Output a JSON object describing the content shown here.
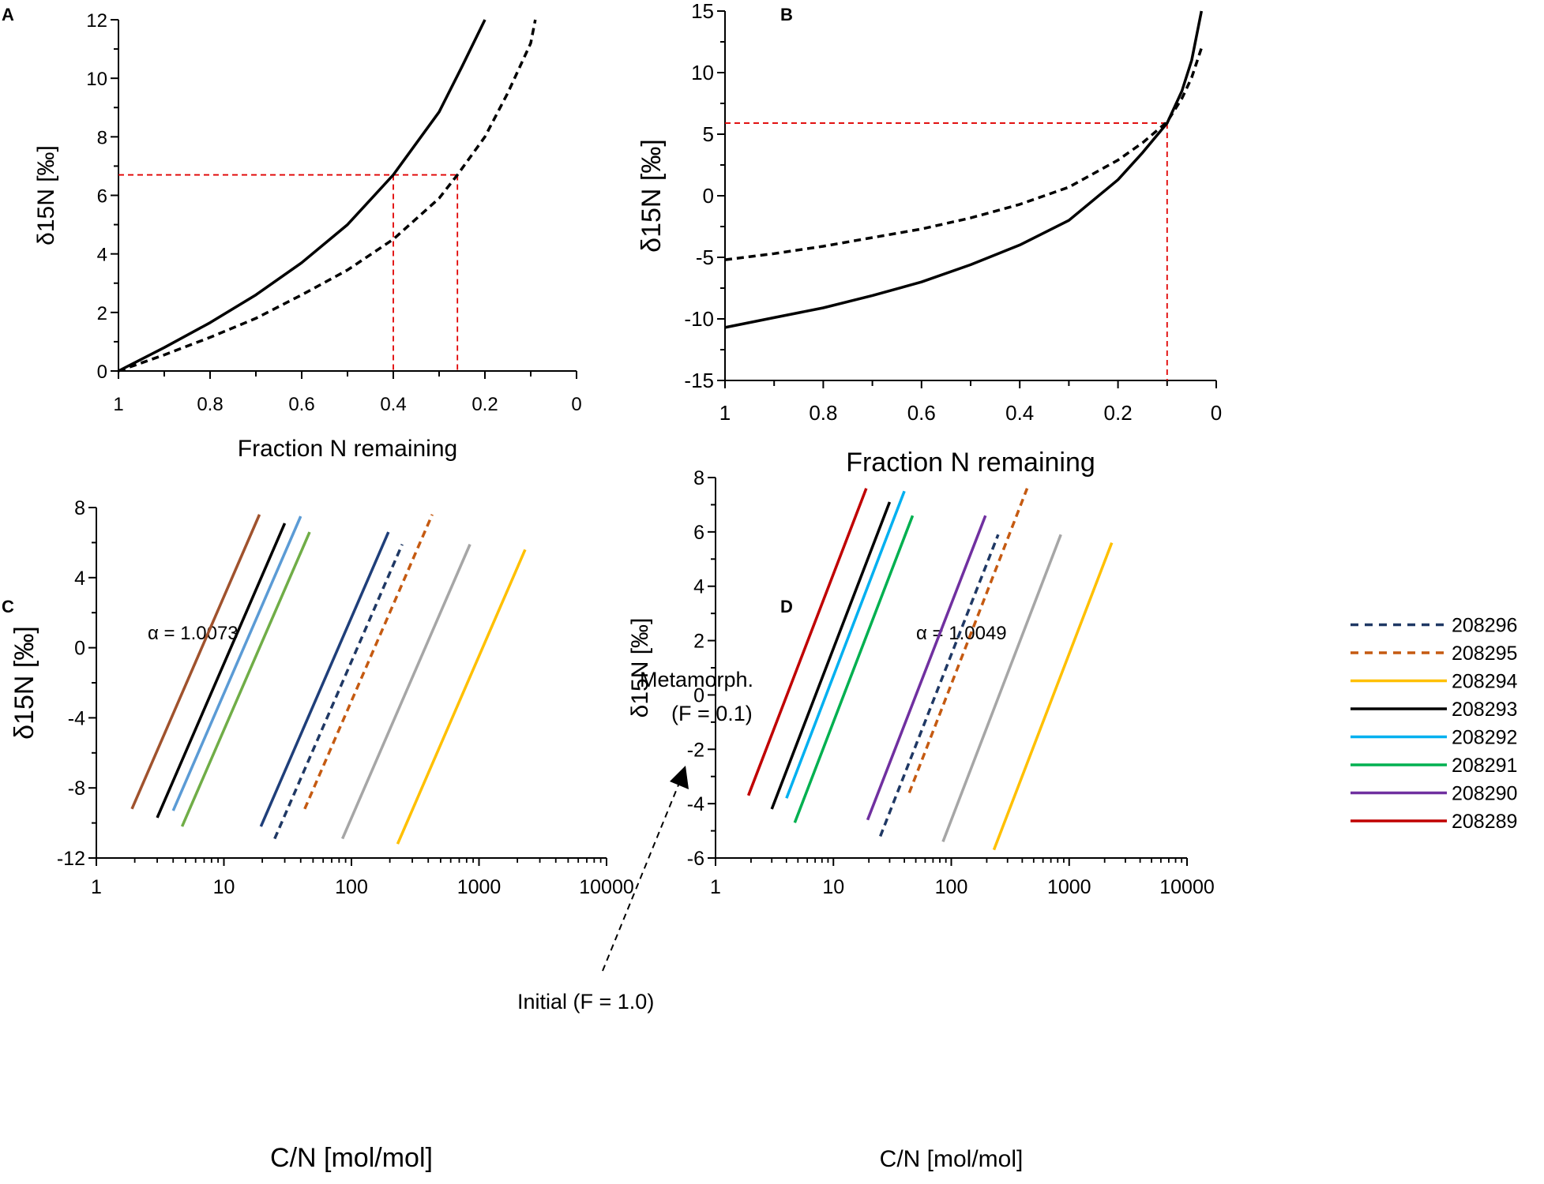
{
  "chart_data": [
    {
      "panel": "A",
      "type": "line",
      "xlabel": "Fraction N remaining",
      "ylabel": "δ15N [‰]",
      "xlim": [
        1,
        0
      ],
      "ylim": [
        0,
        12
      ],
      "x_ticks": [
        "1",
        "0.8",
        "0.6",
        "0.4",
        "0.2",
        "0"
      ],
      "y_ticks": [
        "0",
        "2",
        "4",
        "6",
        "8",
        "10",
        "12"
      ],
      "series": [
        {
          "name": "solid",
          "style": "solid",
          "x": [
            1.0,
            0.9,
            0.8,
            0.7,
            0.6,
            0.5,
            0.4,
            0.3,
            0.25,
            0.2
          ],
          "y": [
            0.0,
            0.8,
            1.65,
            2.6,
            3.7,
            5.0,
            6.7,
            8.85,
            10.4,
            12.0
          ]
        },
        {
          "name": "dashed",
          "style": "dashed",
          "x": [
            1.0,
            0.9,
            0.8,
            0.7,
            0.6,
            0.5,
            0.4,
            0.3,
            0.26,
            0.2,
            0.15,
            0.1,
            0.09
          ],
          "y": [
            0.0,
            0.55,
            1.15,
            1.8,
            2.6,
            3.45,
            4.5,
            5.9,
            6.7,
            8.0,
            9.5,
            11.2,
            12.0
          ]
        }
      ],
      "reference_lines": {
        "y": 6.7,
        "x": [
          0.4,
          0.26
        ]
      }
    },
    {
      "panel": "B",
      "type": "line",
      "xlabel": "Fraction N remaining",
      "ylabel": "δ15N [‰]",
      "xlim": [
        1,
        0
      ],
      "ylim": [
        -15,
        15
      ],
      "x_ticks": [
        "1",
        "0.8",
        "0.6",
        "0.4",
        "0.2",
        "0"
      ],
      "y_ticks": [
        "-15",
        "-10",
        "-5",
        "0",
        "5",
        "10",
        "15"
      ],
      "series": [
        {
          "name": "solid",
          "style": "solid",
          "x": [
            1.0,
            0.9,
            0.8,
            0.7,
            0.6,
            0.5,
            0.4,
            0.3,
            0.2,
            0.15,
            0.1,
            0.07,
            0.05,
            0.04,
            0.03
          ],
          "y": [
            -10.7,
            -9.9,
            -9.1,
            -8.1,
            -7.0,
            -5.6,
            -4.0,
            -2.0,
            1.3,
            3.5,
            5.9,
            8.5,
            11.0,
            13.0,
            15.0
          ]
        },
        {
          "name": "dashed",
          "style": "dashed",
          "x": [
            1.0,
            0.9,
            0.8,
            0.7,
            0.6,
            0.5,
            0.4,
            0.3,
            0.2,
            0.15,
            0.1,
            0.07,
            0.05,
            0.03
          ],
          "y": [
            -5.2,
            -4.7,
            -4.1,
            -3.4,
            -2.7,
            -1.8,
            -0.7,
            0.7,
            2.9,
            4.3,
            6.0,
            7.9,
            9.6,
            12.0
          ]
        }
      ],
      "reference_lines": {
        "y": 5.9,
        "x": [
          0.1
        ]
      }
    },
    {
      "panel": "C",
      "type": "line",
      "xscale": "log",
      "xlabel": "C/N [mol/mol]",
      "ylabel": "δ15N [‰]",
      "xlim": [
        1,
        10000
      ],
      "ylim": [
        -12,
        8
      ],
      "x_ticks": [
        "1",
        "10",
        "100",
        "1000",
        "10000"
      ],
      "y_ticks": [
        "-12",
        "-8",
        "-4",
        "0",
        "4",
        "8"
      ],
      "annotation": "α = 1.0073",
      "text_metamorph_1": "Metamorph.",
      "text_metamorph_2": "(F = 0.1)",
      "text_initial": "Initial (F = 1.0)",
      "series": [
        {
          "name": "208289",
          "color": "#a0522d",
          "style": "solid",
          "x": [
            1.9,
            19
          ],
          "y": [
            -9.2,
            7.6
          ]
        },
        {
          "name": "208293",
          "color": "#000000",
          "style": "solid",
          "x": [
            3.0,
            30
          ],
          "y": [
            -9.7,
            7.1
          ]
        },
        {
          "name": "208292",
          "color": "#5b9bd5",
          "style": "solid",
          "x": [
            4.0,
            40
          ],
          "y": [
            -9.3,
            7.5
          ]
        },
        {
          "name": "208291",
          "color": "#70ad47",
          "style": "solid",
          "x": [
            4.7,
            47
          ],
          "y": [
            -10.2,
            6.6
          ]
        },
        {
          "name": "208290",
          "color": "#1f3f7a",
          "style": "solid",
          "x": [
            19.5,
            195
          ],
          "y": [
            -10.2,
            6.6
          ]
        },
        {
          "name": "208296",
          "color": "#1f3864",
          "style": "dashed",
          "x": [
            25,
            250
          ],
          "y": [
            -10.9,
            5.9
          ]
        },
        {
          "name": "208295",
          "color": "#c55a11",
          "style": "dashed",
          "x": [
            43,
            430
          ],
          "y": [
            -9.2,
            7.6
          ]
        },
        {
          "name": "unlabeled-grey",
          "color": "#a6a6a6",
          "style": "solid",
          "x": [
            85,
            850
          ],
          "y": [
            -10.9,
            5.9
          ]
        },
        {
          "name": "208294",
          "color": "#ffc000",
          "style": "solid",
          "x": [
            230,
            2300
          ],
          "y": [
            -11.2,
            5.6
          ]
        }
      ]
    },
    {
      "panel": "D",
      "type": "line",
      "xscale": "log",
      "xlabel": "C/N [mol/mol]",
      "ylabel": "δ15N [‰]",
      "xlim": [
        1,
        10000
      ],
      "ylim": [
        -6,
        8
      ],
      "x_ticks": [
        "1",
        "10",
        "100",
        "1000",
        "10000"
      ],
      "y_ticks": [
        "-6",
        "-4",
        "-2",
        "0",
        "2",
        "4",
        "6",
        "8"
      ],
      "annotation": "α = 1.0049",
      "legend": [
        "208296",
        "208295",
        "208294",
        "208293",
        "208292",
        "208291",
        "208290",
        "208289"
      ],
      "series": [
        {
          "name": "208296",
          "color": "#1f3864",
          "style": "dashed",
          "x": [
            25,
            250
          ],
          "y": [
            -5.2,
            5.9
          ]
        },
        {
          "name": "208295",
          "color": "#c55a11",
          "style": "dashed",
          "x": [
            44,
            440
          ],
          "y": [
            -3.6,
            7.6
          ]
        },
        {
          "name": "208294",
          "color": "#ffc000",
          "style": "solid",
          "x": [
            230,
            2300
          ],
          "y": [
            -5.7,
            5.6
          ]
        },
        {
          "name": "208293",
          "color": "#000000",
          "style": "solid",
          "x": [
            3.0,
            30
          ],
          "y": [
            -4.2,
            7.1
          ]
        },
        {
          "name": "208292",
          "color": "#00b0f0",
          "style": "solid",
          "x": [
            4.0,
            40
          ],
          "y": [
            -3.8,
            7.5
          ]
        },
        {
          "name": "208291",
          "color": "#00b050",
          "style": "solid",
          "x": [
            4.7,
            47
          ],
          "y": [
            -4.7,
            6.6
          ]
        },
        {
          "name": "208290",
          "color": "#7030a0",
          "style": "solid",
          "x": [
            19.5,
            195
          ],
          "y": [
            -4.6,
            6.6
          ]
        },
        {
          "name": "208289",
          "color": "#c00000",
          "style": "solid",
          "x": [
            1.9,
            19
          ],
          "y": [
            -3.7,
            7.6
          ]
        },
        {
          "name": "unlabeled-grey",
          "color": "#a6a6a6",
          "style": "solid",
          "x": [
            85,
            850
          ],
          "y": [
            -5.4,
            5.9
          ]
        }
      ]
    }
  ]
}
